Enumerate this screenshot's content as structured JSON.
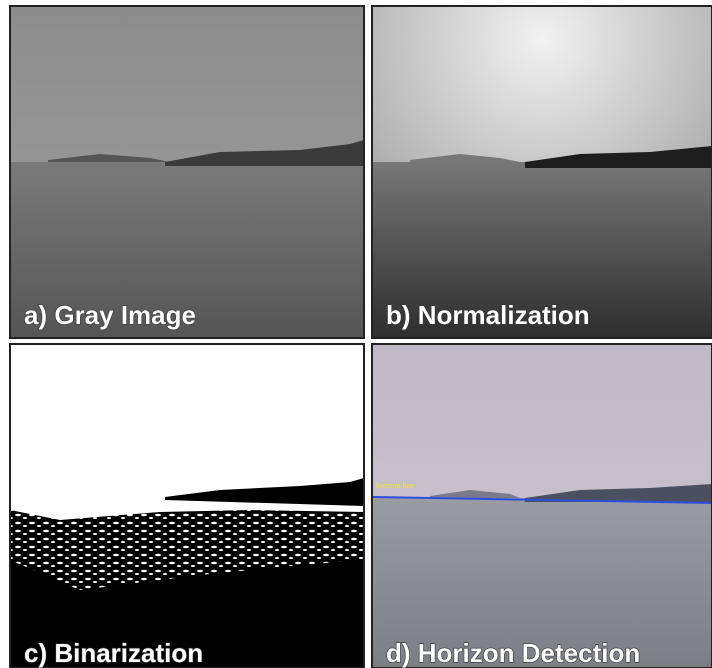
{
  "panels": [
    {
      "label": "a) Gray Image"
    },
    {
      "label": "b) Normalization"
    },
    {
      "label": "c) Binarization"
    },
    {
      "label": "d) Horizon Detection",
      "annotation": "horizon line"
    }
  ]
}
